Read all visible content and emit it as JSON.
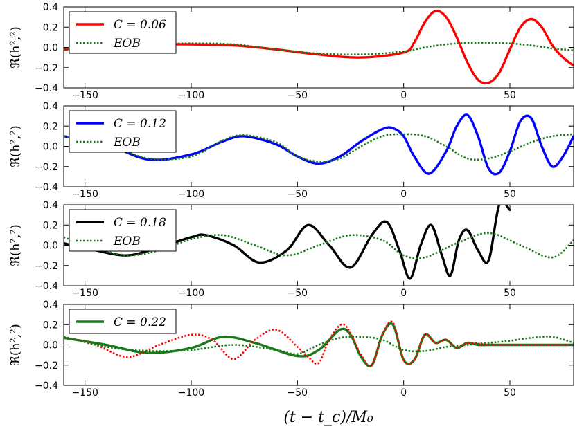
{
  "chart_data": [
    {
      "type": "line",
      "ylabel": "ℜ(h²,²)",
      "xlim": [
        -160,
        80
      ],
      "ylim": [
        -0.4,
        0.4
      ],
      "x_ticks": [
        "−150",
        "−100",
        "−50",
        "0",
        "50"
      ],
      "y_ticks": [
        "0.4",
        "0.2",
        "0.0",
        "−0.2",
        "−0.4"
      ],
      "legend_position": "top-left",
      "series": [
        {
          "name": "C = 0.06",
          "label": "C = 0.06",
          "color": "#ff0000",
          "style": "solid",
          "x": [
            -160,
            -140,
            -120,
            -100,
            -80,
            -60,
            -40,
            -20,
            0,
            5,
            10,
            15,
            20,
            25,
            30,
            35,
            40,
            45,
            50,
            55,
            60,
            65,
            70,
            75,
            80
          ],
          "y": [
            -0.02,
            0.01,
            0.03,
            0.03,
            0.02,
            -0.02,
            -0.07,
            -0.1,
            -0.05,
            0.05,
            0.25,
            0.36,
            0.3,
            0.1,
            -0.15,
            -0.32,
            -0.35,
            -0.25,
            -0.02,
            0.2,
            0.28,
            0.2,
            0.02,
            -0.1,
            -0.18
          ]
        },
        {
          "name": "EOB",
          "label": "EOB",
          "color": "#1a7a1a",
          "style": "dotted",
          "x": [
            -160,
            -140,
            -120,
            -100,
            -80,
            -60,
            -40,
            -20,
            0,
            10,
            20,
            30,
            40,
            50,
            60,
            70,
            80
          ],
          "y": [
            -0.01,
            0.01,
            0.03,
            0.04,
            0.03,
            -0.02,
            -0.06,
            -0.07,
            -0.04,
            0.0,
            0.03,
            0.045,
            0.045,
            0.04,
            0.02,
            -0.01,
            -0.03
          ]
        }
      ]
    },
    {
      "type": "line",
      "ylabel": "ℜ(h²,²)",
      "xlim": [
        -160,
        80
      ],
      "ylim": [
        -0.4,
        0.4
      ],
      "x_ticks": [
        "−150",
        "−100",
        "−50",
        "0",
        "50"
      ],
      "y_ticks": [
        "0.4",
        "0.2",
        "0.0",
        "−0.2",
        "−0.4"
      ],
      "legend_position": "top-left",
      "series": [
        {
          "name": "C = 0.12",
          "label": "C = 0.12",
          "color": "#0000ff",
          "style": "solid",
          "x": [
            -160,
            -140,
            -120,
            -100,
            -85,
            -75,
            -60,
            -50,
            -40,
            -30,
            -20,
            -10,
            -5,
            0,
            5,
            12,
            20,
            25,
            30,
            35,
            40,
            45,
            50,
            55,
            60,
            65,
            70,
            75,
            80
          ],
          "y": [
            0.1,
            0.02,
            -0.13,
            -0.08,
            0.05,
            0.1,
            0.02,
            -0.1,
            -0.17,
            -0.1,
            0.05,
            0.17,
            0.18,
            0.1,
            -0.1,
            -0.27,
            -0.05,
            0.2,
            0.31,
            0.1,
            -0.22,
            -0.26,
            -0.05,
            0.25,
            0.28,
            0.0,
            -0.2,
            -0.1,
            0.1
          ]
        },
        {
          "name": "EOB",
          "label": "EOB",
          "color": "#1a7a1a",
          "style": "dotted",
          "x": [
            -160,
            -140,
            -120,
            -100,
            -85,
            -75,
            -60,
            -50,
            -40,
            -30,
            -20,
            -10,
            0,
            10,
            20,
            30,
            40,
            50,
            60,
            70,
            80
          ],
          "y": [
            0.1,
            0.02,
            -0.12,
            -0.1,
            0.06,
            0.11,
            0.04,
            -0.1,
            -0.15,
            -0.12,
            0.0,
            0.1,
            0.12,
            0.1,
            0.0,
            -0.12,
            -0.12,
            -0.05,
            0.04,
            0.1,
            0.12
          ]
        }
      ]
    },
    {
      "type": "line",
      "ylabel": "ℜ(h²,²)",
      "xlim": [
        -160,
        80
      ],
      "ylim": [
        -0.4,
        0.4
      ],
      "x_ticks": [
        "−150",
        "−100",
        "−50",
        "0",
        "50"
      ],
      "y_ticks": [
        "0.4",
        "0.2",
        "0.0",
        "−0.2",
        "−0.4"
      ],
      "legend_position": "top-left",
      "series": [
        {
          "name": "C = 0.18",
          "label": "C = 0.18",
          "color": "#000000",
          "style": "solid",
          "x": [
            -160,
            -145,
            -130,
            -115,
            -100,
            -93,
            -80,
            -68,
            -55,
            -45,
            -35,
            -25,
            -15,
            -8,
            -2,
            3,
            8,
            13,
            18,
            22,
            26,
            30,
            35,
            40,
            45,
            50
          ],
          "y": [
            0.02,
            -0.05,
            -0.1,
            -0.02,
            0.08,
            0.1,
            0.0,
            -0.17,
            -0.05,
            0.2,
            0.0,
            -0.22,
            0.1,
            0.23,
            -0.05,
            -0.33,
            0.0,
            0.2,
            -0.1,
            -0.3,
            0.05,
            0.15,
            -0.05,
            -0.15,
            0.4,
            0.35
          ]
        },
        {
          "name": "EOB",
          "label": "EOB",
          "color": "#1a7a1a",
          "style": "dotted",
          "x": [
            -160,
            -145,
            -130,
            -115,
            -100,
            -85,
            -70,
            -55,
            -40,
            -25,
            -10,
            0,
            10,
            25,
            40,
            55,
            70,
            80
          ],
          "y": [
            0.08,
            -0.03,
            -0.1,
            -0.05,
            0.06,
            0.1,
            0.0,
            -0.1,
            0.0,
            0.1,
            0.05,
            -0.1,
            -0.12,
            0.02,
            0.12,
            0.0,
            -0.12,
            0.05
          ]
        }
      ]
    },
    {
      "type": "line",
      "ylabel": "ℜ(h²,²)",
      "xlabel": "(t − t_c)/M₀",
      "xlim": [
        -160,
        80
      ],
      "ylim": [
        -0.4,
        0.4
      ],
      "x_ticks": [
        "−150",
        "−100",
        "−50",
        "0",
        "50"
      ],
      "y_ticks": [
        "0.4",
        "0.2",
        "0.0",
        "−0.2",
        "−0.4"
      ],
      "legend_position": "top-left",
      "series": [
        {
          "name": "C = 0.22",
          "label": "C = 0.22",
          "color": "#1a7a1a",
          "style": "solid",
          "x": [
            -160,
            -140,
            -120,
            -100,
            -85,
            -70,
            -50,
            -40,
            -30,
            -25,
            -20,
            -15,
            -10,
            -5,
            0,
            5,
            10,
            15,
            20,
            25,
            30,
            35,
            40,
            50,
            60,
            70,
            80
          ],
          "y": [
            0.07,
            0.0,
            -0.08,
            -0.03,
            0.08,
            0.02,
            -0.11,
            -0.05,
            0.15,
            0.1,
            -0.12,
            -0.2,
            0.1,
            0.2,
            -0.15,
            -0.15,
            0.1,
            0.02,
            0.05,
            -0.03,
            0.02,
            0.0,
            0.0,
            0.0,
            0.0,
            0.0,
            0.0
          ]
        },
        {
          "name": "red-dotted",
          "label": "",
          "color": "#ff0000",
          "style": "dotted",
          "x": [
            -160,
            -145,
            -130,
            -115,
            -100,
            -90,
            -80,
            -70,
            -60,
            -50,
            -45,
            -40,
            -35,
            -28,
            -20,
            -15,
            -10,
            -5,
            0,
            5,
            10,
            15,
            20,
            25,
            30,
            40,
            50,
            60,
            70,
            80
          ],
          "y": [
            0.08,
            0.0,
            -0.12,
            0.0,
            0.1,
            0.05,
            -0.14,
            0.05,
            0.15,
            -0.02,
            -0.12,
            -0.18,
            0.05,
            0.2,
            -0.1,
            -0.2,
            0.1,
            0.22,
            -0.15,
            -0.15,
            0.1,
            0.02,
            0.05,
            -0.03,
            0.02,
            0.0,
            0.0,
            0.0,
            0.0,
            0.0
          ]
        },
        {
          "name": "EOB",
          "label": "",
          "color": "#1a7a1a",
          "style": "dotted",
          "x": [
            -160,
            -140,
            -120,
            -100,
            -80,
            -60,
            -50,
            -40,
            -30,
            -20,
            -10,
            0,
            10,
            20,
            30,
            40,
            50,
            60,
            70,
            80
          ],
          "y": [
            0.08,
            -0.02,
            -0.06,
            -0.05,
            0.0,
            -0.05,
            -0.09,
            0.0,
            0.07,
            0.08,
            0.05,
            -0.05,
            -0.06,
            -0.02,
            0.0,
            0.02,
            0.04,
            0.07,
            0.08,
            0.02
          ]
        }
      ]
    }
  ]
}
